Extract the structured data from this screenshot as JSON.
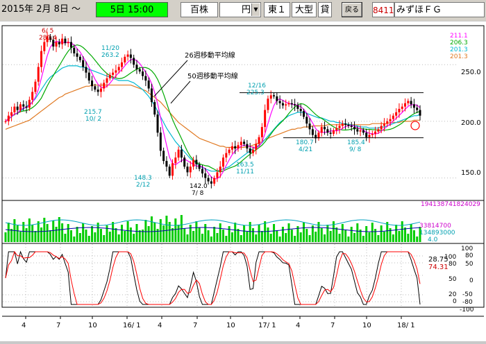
{
  "toolbar": {
    "date": "2015年 2月 8日 ～",
    "period": "5日 15:00",
    "indicator": "百株",
    "currency": "円",
    "exchange": "東１",
    "size_class": "大型",
    "margin": "貸",
    "back_button": "戻る",
    "code": "8411",
    "name": "みずほＦＧ"
  },
  "colors": {
    "ma_short": "#ff00ff",
    "ma_mid": "#00aa00",
    "ma_26": "#00b8d0",
    "ma_50": "#e07820",
    "candle": "#ff0000",
    "volume": "#00cc00",
    "stoch_k": "#000000",
    "stoch_d": "#ff0000",
    "period_highlight": "#00ff00"
  },
  "chart_data": {
    "type": "line",
    "price_axis": {
      "ticks": [
        "250.0",
        "200.0",
        "150.0"
      ],
      "range": [
        132,
        282
      ]
    },
    "ma_legend": [
      {
        "value": "211.1",
        "color": "#ff00ff"
      },
      {
        "value": "206.3",
        "color": "#00aa00"
      },
      {
        "value": "201.3",
        "color": "#00b8d0"
      },
      {
        "value": "201.3",
        "color": "#e07820"
      }
    ],
    "annotations": {
      "ma26": "26週移動平均線",
      "ma50": "50週移動平均線",
      "high_2015": {
        "date": "6/ 5",
        "price": "280.4"
      },
      "high_nov": {
        "date": "11/20",
        "price": "263.2"
      },
      "low_oct": {
        "price": "215.7",
        "date": "10/ 2"
      },
      "low_2016_feb": {
        "price": "148.3",
        "date": "2/12"
      },
      "low_2016_jul": {
        "price": "142.0",
        "date": "7/ 8"
      },
      "low_nov": {
        "price": "163.5",
        "date": "11/11"
      },
      "high_dec": {
        "date": "12/16",
        "price": "225.3"
      },
      "low_apr": {
        "price": "180.7",
        "date": "4/21"
      },
      "low_sep": {
        "price": "185.4",
        "date": "9/ 8"
      }
    },
    "range_box": {
      "upper": 225.3,
      "lower": 185.5
    },
    "x_ticks": [
      "4",
      "7",
      "10",
      "16/ 1",
      "4",
      "7",
      "10",
      "17/ 1",
      "4",
      "7",
      "10",
      "18/ 1"
    ],
    "volume_legend": {
      "line1": "194138741824029",
      "line2": "33814700",
      "line3": "134893000",
      "line4": "4.0"
    },
    "stoch_axis": {
      "left_ticks": [
        "100",
        "80",
        "50",
        "20",
        "0"
      ],
      "right_ticks": [
        "100",
        "80",
        "50",
        "0",
        "-50",
        "-80",
        "-100"
      ],
      "value_k": "28.75",
      "value_d": "74.31"
    },
    "close_series": [
      200,
      205,
      208,
      213,
      210,
      215,
      213,
      212,
      219,
      226,
      235,
      248,
      262,
      270,
      275,
      272,
      266,
      270,
      268,
      273,
      269,
      270,
      265,
      260,
      257,
      254,
      248,
      243,
      236,
      231,
      228,
      226,
      229,
      234,
      238,
      241,
      243,
      245,
      248,
      252,
      257,
      259,
      256,
      250,
      246,
      244,
      240,
      236,
      229,
      217,
      206,
      190,
      174,
      165,
      160,
      152,
      163,
      168,
      175,
      168,
      160,
      155,
      160,
      166,
      162,
      158,
      154,
      150,
      147,
      145,
      150,
      155,
      160,
      168,
      172,
      175,
      178,
      176,
      179,
      182,
      180,
      176,
      172,
      175,
      180,
      186,
      195,
      210,
      220,
      223,
      222,
      218,
      216,
      214,
      215,
      216,
      215,
      214,
      211,
      209,
      204,
      198,
      193,
      188,
      185,
      190,
      195,
      193,
      190,
      189,
      192,
      194,
      196,
      198,
      197,
      196,
      195,
      193,
      191,
      192,
      190,
      186,
      188,
      189,
      191,
      193,
      196,
      198,
      200,
      202,
      205,
      208,
      211,
      213,
      216,
      218,
      215,
      212,
      210,
      205
    ],
    "ma_26_series": [
      200,
      202,
      204,
      206,
      207,
      209,
      211,
      213,
      215,
      217,
      220,
      224,
      228,
      232,
      236,
      239,
      241,
      243,
      245,
      247,
      248,
      249,
      249,
      249,
      249,
      248,
      248,
      247,
      246,
      245,
      244,
      243,
      242,
      241,
      240,
      239,
      238,
      237,
      236,
      236,
      236,
      236,
      235,
      234,
      232,
      230,
      228,
      225,
      222,
      218,
      214,
      209,
      204,
      199,
      194,
      190,
      186,
      182,
      179,
      176,
      173,
      170,
      167,
      165,
      163,
      161,
      159,
      158,
      157,
      156,
      156,
      156,
      157,
      158,
      159,
      160,
      162,
      164,
      166,
      168,
      170,
      172,
      174,
      176,
      177,
      179,
      181,
      184,
      187,
      190,
      193,
      196,
      199,
      201,
      203,
      205,
      206,
      207,
      208,
      208,
      208,
      207,
      206,
      205,
      204,
      203,
      203,
      202,
      201,
      200,
      200,
      199,
      199,
      198,
      198,
      197,
      197,
      196,
      196,
      195,
      195,
      195,
      194,
      194,
      194,
      194,
      195,
      195,
      196,
      197,
      198,
      199,
      200,
      201,
      202,
      203,
      204,
      205,
      205,
      206
    ],
    "ma_50_series": [
      193,
      194,
      195,
      196,
      197,
      198,
      199,
      200,
      201,
      203,
      205,
      207,
      209,
      211,
      213,
      215,
      217,
      219,
      221,
      222,
      224,
      225,
      226,
      227,
      228,
      229,
      230,
      231,
      231,
      232,
      232,
      232,
      232,
      232,
      232,
      232,
      232,
      232,
      232,
      232,
      232,
      232,
      232,
      231,
      230,
      229,
      228,
      227,
      225,
      223,
      221,
      219,
      217,
      214,
      211,
      208,
      205,
      202,
      199,
      197,
      195,
      193,
      191,
      189,
      187,
      185,
      184,
      183,
      182,
      181,
      180,
      179,
      178,
      178,
      177,
      177,
      177,
      177,
      177,
      177,
      177,
      178,
      178,
      179,
      180,
      181,
      182,
      184,
      185,
      186,
      187,
      188,
      189,
      190,
      191,
      192,
      193,
      193,
      194,
      194,
      195,
      195,
      195,
      196,
      196,
      196,
      196,
      196,
      197,
      197,
      197,
      197,
      197,
      197,
      197,
      197,
      197,
      197,
      197,
      197,
      197,
      197,
      197,
      198,
      198,
      198,
      198,
      198,
      198,
      199,
      199,
      199,
      199,
      200,
      200,
      200,
      200,
      201,
      201,
      201
    ]
  }
}
